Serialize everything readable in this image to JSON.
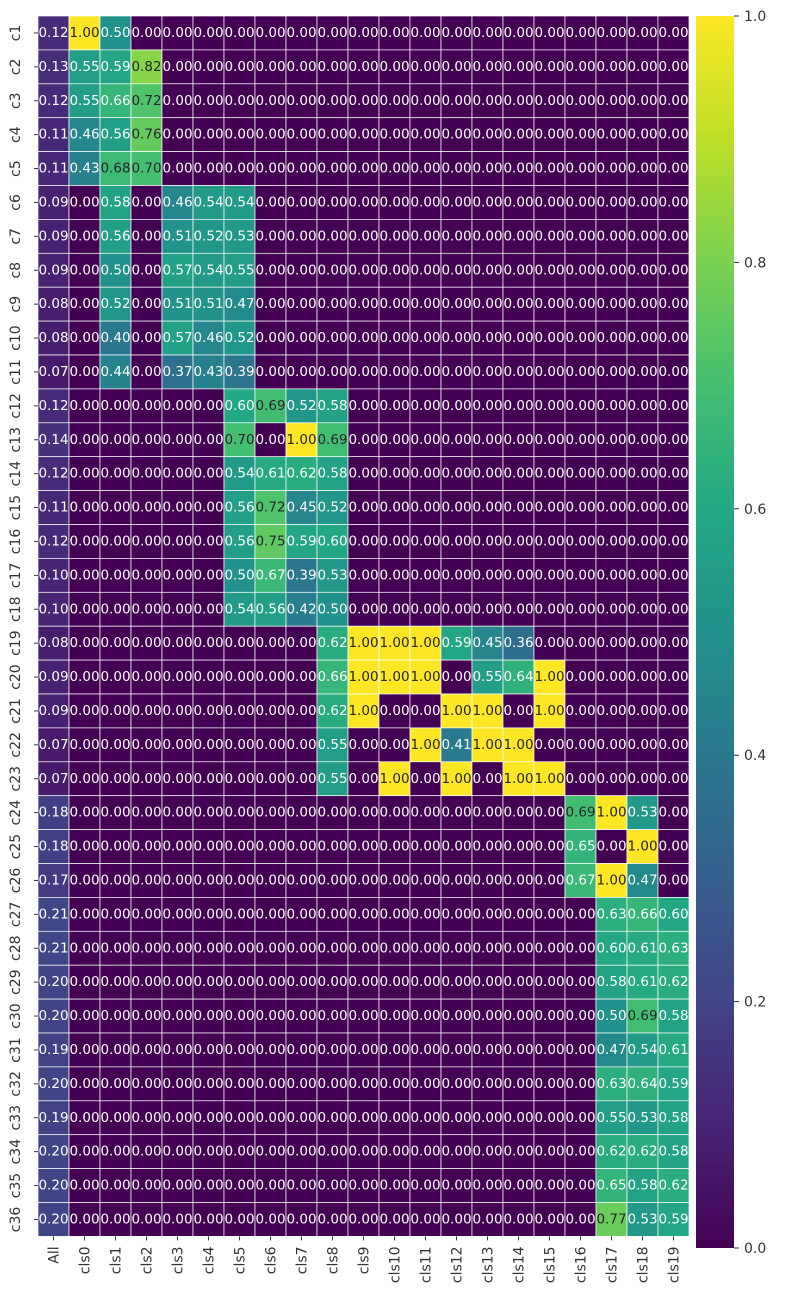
{
  "chart_data": {
    "type": "heatmap",
    "title": "",
    "xlabel": "",
    "ylabel": "",
    "colormap": "viridis",
    "value_range": [
      0,
      1
    ],
    "annotations": true,
    "colorbar_ticks": [
      "0.0",
      "0.2",
      "0.4",
      "0.6",
      "0.8",
      "1.0"
    ],
    "colorbar_tick_values": [
      0,
      0.2,
      0.4,
      0.6,
      0.8,
      1.0
    ],
    "columns": [
      "All",
      "cls0",
      "cls1",
      "cls2",
      "cls3",
      "cls4",
      "cls5",
      "cls6",
      "cls7",
      "cls8",
      "cls9",
      "cls10",
      "cls11",
      "cls12",
      "cls13",
      "cls14",
      "cls15",
      "cls16",
      "cls17",
      "cls18",
      "cls19"
    ],
    "rows": [
      "c1",
      "c2",
      "c3",
      "c4",
      "c5",
      "c6",
      "c7",
      "c8",
      "c9",
      "c10",
      "c11",
      "c12",
      "c13",
      "c14",
      "c15",
      "c16",
      "c17",
      "c18",
      "c19",
      "c20",
      "c21",
      "c22",
      "c23",
      "c24",
      "c25",
      "c26",
      "c27",
      "c28",
      "c29",
      "c30",
      "c31",
      "c32",
      "c33",
      "c34",
      "c35",
      "c36"
    ],
    "values": [
      [
        0.12,
        1.0,
        0.5,
        0,
        0,
        0,
        0,
        0,
        0,
        0,
        0,
        0,
        0,
        0,
        0,
        0,
        0,
        0,
        0,
        0,
        0
      ],
      [
        0.13,
        0.55,
        0.59,
        0.82,
        0,
        0,
        0,
        0,
        0,
        0,
        0,
        0,
        0,
        0,
        0,
        0,
        0,
        0,
        0,
        0,
        0
      ],
      [
        0.12,
        0.55,
        0.66,
        0.72,
        0,
        0,
        0,
        0,
        0,
        0,
        0,
        0,
        0,
        0,
        0,
        0,
        0,
        0,
        0,
        0,
        0
      ],
      [
        0.11,
        0.46,
        0.56,
        0.76,
        0,
        0,
        0,
        0,
        0,
        0,
        0,
        0,
        0,
        0,
        0,
        0,
        0,
        0,
        0,
        0,
        0
      ],
      [
        0.11,
        0.43,
        0.68,
        0.7,
        0,
        0,
        0,
        0,
        0,
        0,
        0,
        0,
        0,
        0,
        0,
        0,
        0,
        0,
        0,
        0,
        0
      ],
      [
        0.09,
        0,
        0.58,
        0,
        0.46,
        0.54,
        0.54,
        0,
        0,
        0,
        0,
        0,
        0,
        0,
        0,
        0,
        0,
        0,
        0,
        0,
        0
      ],
      [
        0.09,
        0,
        0.56,
        0,
        0.51,
        0.52,
        0.53,
        0,
        0,
        0,
        0,
        0,
        0,
        0,
        0,
        0,
        0,
        0,
        0,
        0,
        0
      ],
      [
        0.09,
        0,
        0.5,
        0,
        0.57,
        0.54,
        0.55,
        0,
        0,
        0,
        0,
        0,
        0,
        0,
        0,
        0,
        0,
        0,
        0,
        0,
        0
      ],
      [
        0.08,
        0,
        0.52,
        0,
        0.51,
        0.51,
        0.47,
        0,
        0,
        0,
        0,
        0,
        0,
        0,
        0,
        0,
        0,
        0,
        0,
        0,
        0
      ],
      [
        0.08,
        0,
        0.4,
        0,
        0.57,
        0.46,
        0.52,
        0,
        0,
        0,
        0,
        0,
        0,
        0,
        0,
        0,
        0,
        0,
        0,
        0,
        0
      ],
      [
        0.07,
        0,
        0.44,
        0,
        0.37,
        0.43,
        0.39,
        0,
        0,
        0,
        0,
        0,
        0,
        0,
        0,
        0,
        0,
        0,
        0,
        0,
        0
      ],
      [
        0.12,
        0,
        0,
        0,
        0,
        0,
        0.6,
        0.69,
        0.52,
        0.58,
        0,
        0,
        0,
        0,
        0,
        0,
        0,
        0,
        0,
        0,
        0
      ],
      [
        0.14,
        0,
        0,
        0,
        0,
        0,
        0.7,
        0,
        1.0,
        0.69,
        0,
        0,
        0,
        0,
        0,
        0,
        0,
        0,
        0,
        0,
        0
      ],
      [
        0.12,
        0,
        0,
        0,
        0,
        0,
        0.54,
        0.61,
        0.62,
        0.58,
        0,
        0,
        0,
        0,
        0,
        0,
        0,
        0,
        0,
        0,
        0
      ],
      [
        0.11,
        0,
        0,
        0,
        0,
        0,
        0.56,
        0.72,
        0.45,
        0.52,
        0,
        0,
        0,
        0,
        0,
        0,
        0,
        0,
        0,
        0,
        0
      ],
      [
        0.12,
        0,
        0,
        0,
        0,
        0,
        0.56,
        0.75,
        0.59,
        0.6,
        0,
        0,
        0,
        0,
        0,
        0,
        0,
        0,
        0,
        0,
        0
      ],
      [
        0.1,
        0,
        0,
        0,
        0,
        0,
        0.5,
        0.67,
        0.39,
        0.53,
        0,
        0,
        0,
        0,
        0,
        0,
        0,
        0,
        0,
        0,
        0
      ],
      [
        0.1,
        0,
        0,
        0,
        0,
        0,
        0.54,
        0.56,
        0.42,
        0.5,
        0,
        0,
        0,
        0,
        0,
        0,
        0,
        0,
        0,
        0,
        0
      ],
      [
        0.08,
        0,
        0,
        0,
        0,
        0,
        0,
        0,
        0,
        0.62,
        1.0,
        1.0,
        1.0,
        0.59,
        0.45,
        0.36,
        0,
        0,
        0,
        0,
        0
      ],
      [
        0.09,
        0,
        0,
        0,
        0,
        0,
        0,
        0,
        0,
        0.66,
        1.0,
        1.0,
        1.0,
        0,
        0.55,
        0.64,
        1.0,
        0,
        0,
        0,
        0
      ],
      [
        0.09,
        0,
        0,
        0,
        0,
        0,
        0,
        0,
        0,
        0.62,
        1.0,
        0,
        0,
        1.0,
        1.0,
        0,
        1.0,
        0,
        0,
        0,
        0
      ],
      [
        0.07,
        0,
        0,
        0,
        0,
        0,
        0,
        0,
        0,
        0.55,
        0,
        0,
        1.0,
        0.41,
        1.0,
        1.0,
        0,
        0,
        0,
        0,
        0
      ],
      [
        0.07,
        0,
        0,
        0,
        0,
        0,
        0,
        0,
        0,
        0.55,
        0,
        1.0,
        0,
        1.0,
        0,
        1.0,
        1.0,
        0,
        0,
        0,
        0
      ],
      [
        0.18,
        0,
        0,
        0,
        0,
        0,
        0,
        0,
        0,
        0,
        0,
        0,
        0,
        0,
        0,
        0,
        0,
        0.69,
        1.0,
        0.53,
        0
      ],
      [
        0.18,
        0,
        0,
        0,
        0,
        0,
        0,
        0,
        0,
        0,
        0,
        0,
        0,
        0,
        0,
        0,
        0,
        0.65,
        0,
        1.0,
        0
      ],
      [
        0.17,
        0,
        0,
        0,
        0,
        0,
        0,
        0,
        0,
        0,
        0,
        0,
        0,
        0,
        0,
        0,
        0,
        0.67,
        1.0,
        0.47,
        0
      ],
      [
        0.21,
        0,
        0,
        0,
        0,
        0,
        0,
        0,
        0,
        0,
        0,
        0,
        0,
        0,
        0,
        0,
        0,
        0,
        0.63,
        0.66,
        0.6
      ],
      [
        0.21,
        0,
        0,
        0,
        0,
        0,
        0,
        0,
        0,
        0,
        0,
        0,
        0,
        0,
        0,
        0,
        0,
        0,
        0.6,
        0.61,
        0.63
      ],
      [
        0.2,
        0,
        0,
        0,
        0,
        0,
        0,
        0,
        0,
        0,
        0,
        0,
        0,
        0,
        0,
        0,
        0,
        0,
        0.58,
        0.61,
        0.62
      ],
      [
        0.2,
        0,
        0,
        0,
        0,
        0,
        0,
        0,
        0,
        0,
        0,
        0,
        0,
        0,
        0,
        0,
        0,
        0,
        0.5,
        0.69,
        0.58
      ],
      [
        0.19,
        0,
        0,
        0,
        0,
        0,
        0,
        0,
        0,
        0,
        0,
        0,
        0,
        0,
        0,
        0,
        0,
        0,
        0.47,
        0.54,
        0.61
      ],
      [
        0.2,
        0,
        0,
        0,
        0,
        0,
        0,
        0,
        0,
        0,
        0,
        0,
        0,
        0,
        0,
        0,
        0,
        0,
        0.63,
        0.64,
        0.59
      ],
      [
        0.19,
        0,
        0,
        0,
        0,
        0,
        0,
        0,
        0,
        0,
        0,
        0,
        0,
        0,
        0,
        0,
        0,
        0,
        0.55,
        0.53,
        0.58
      ],
      [
        0.2,
        0,
        0,
        0,
        0,
        0,
        0,
        0,
        0,
        0,
        0,
        0,
        0,
        0,
        0,
        0,
        0,
        0,
        0.62,
        0.62,
        0.58
      ],
      [
        0.2,
        0,
        0,
        0,
        0,
        0,
        0,
        0,
        0,
        0,
        0,
        0,
        0,
        0,
        0,
        0,
        0,
        0,
        0.65,
        0.58,
        0.62
      ],
      [
        0.2,
        0,
        0,
        0,
        0,
        0,
        0,
        0,
        0,
        0,
        0,
        0,
        0,
        0,
        0,
        0,
        0,
        0,
        0.77,
        0.53,
        0.59
      ]
    ]
  }
}
